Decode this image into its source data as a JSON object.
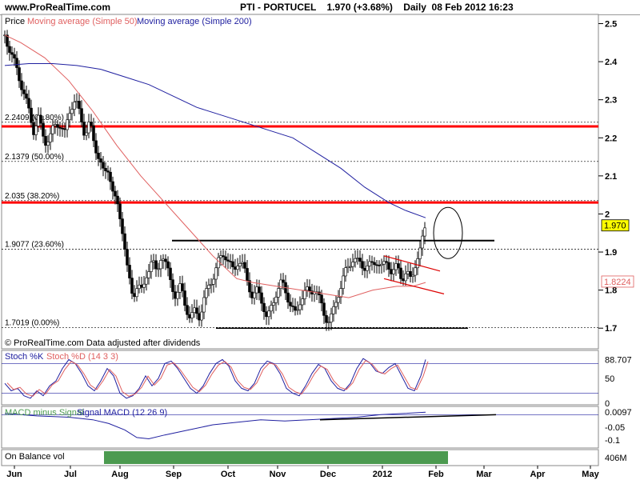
{
  "header": {
    "site": "www.ProRealTime.com",
    "title": "PTI - PORTUCEL",
    "price": "1.970 (+3.68%)",
    "info": "Daily  08 Feb 2012 16:23"
  },
  "legend": {
    "price": "Price",
    "ma50": "Moving average (Simple 50)",
    "ma200": "Moving average (Simple 200)"
  },
  "footnote": "© ProRealTime.com  Data adjusted after dividends",
  "colors": {
    "ma50": "#e06060",
    "ma200": "#2020a0",
    "support": "#ff0000",
    "up_candle": "#ffffff",
    "down_candle": "#000000",
    "stoch_k": "#2020a0",
    "stoch_d": "#e06060",
    "macd": "#2020a0",
    "obv": "#4c9a50",
    "last_price_box": "#ffff00"
  },
  "chart_data": [
    {
      "type": "candlestick",
      "id": "price",
      "x_labels": [
        "Jun",
        "Jul",
        "Aug",
        "Sep",
        "Oct",
        "Nov",
        "Dec",
        "2012",
        "Jan",
        "Feb",
        "Mar",
        "Apr",
        "May"
      ],
      "ylim": [
        1.65,
        2.52
      ],
      "yticks": [
        1.7,
        1.8,
        1.9,
        2.0,
        2.1,
        2.2,
        2.3,
        2.4,
        2.5
      ],
      "last_price": "1.970",
      "ma50_last": "1.8224",
      "fib_levels": [
        {
          "label": "2.2409 (61.80%)",
          "value": 2.2409
        },
        {
          "label": "2.1379 (50.00%)",
          "value": 2.1379
        },
        {
          "label": "2.035 (38.20%)",
          "value": 2.035
        },
        {
          "label": "1.9077 (23.60%)",
          "value": 1.9077
        },
        {
          "label": "1.7019 (0.00%)",
          "value": 1.7019
        }
      ],
      "resistance_lines": [
        2.23,
        2.03
      ],
      "close_path": [
        [
          0,
          2.47
        ],
        [
          8,
          2.42
        ],
        [
          15,
          2.38
        ],
        [
          22,
          2.33
        ],
        [
          30,
          2.27
        ],
        [
          36,
          2.22
        ],
        [
          42,
          2.25
        ],
        [
          50,
          2.19
        ],
        [
          56,
          2.2
        ],
        [
          62,
          2.23
        ],
        [
          68,
          2.24
        ],
        [
          75,
          2.21
        ],
        [
          82,
          2.28
        ],
        [
          88,
          2.3
        ],
        [
          94,
          2.26
        ],
        [
          100,
          2.21
        ],
        [
          106,
          2.24
        ],
        [
          112,
          2.18
        ],
        [
          118,
          2.15
        ],
        [
          124,
          2.1
        ],
        [
          130,
          2.12
        ],
        [
          136,
          2.05
        ],
        [
          142,
          2.01
        ],
        [
          148,
          1.95
        ],
        [
          154,
          1.84
        ],
        [
          160,
          1.78
        ],
        [
          166,
          1.82
        ],
        [
          172,
          1.79
        ],
        [
          178,
          1.85
        ],
        [
          184,
          1.88
        ],
        [
          190,
          1.84
        ],
        [
          196,
          1.9
        ],
        [
          202,
          1.86
        ],
        [
          208,
          1.82
        ],
        [
          214,
          1.78
        ],
        [
          220,
          1.81
        ],
        [
          226,
          1.76
        ],
        [
          232,
          1.72
        ],
        [
          238,
          1.75
        ],
        [
          244,
          1.73
        ],
        [
          250,
          1.78
        ],
        [
          256,
          1.82
        ],
        [
          262,
          1.84
        ],
        [
          268,
          1.88
        ],
        [
          274,
          1.9
        ],
        [
          280,
          1.87
        ],
        [
          286,
          1.85
        ],
        [
          292,
          1.88
        ],
        [
          298,
          1.86
        ],
        [
          304,
          1.82
        ],
        [
          310,
          1.78
        ],
        [
          316,
          1.8
        ],
        [
          322,
          1.77
        ],
        [
          328,
          1.72
        ],
        [
          334,
          1.76
        ],
        [
          340,
          1.8
        ],
        [
          346,
          1.82
        ],
        [
          352,
          1.79
        ],
        [
          358,
          1.76
        ],
        [
          364,
          1.73
        ],
        [
          370,
          1.78
        ],
        [
          376,
          1.8
        ],
        [
          382,
          1.79
        ],
        [
          388,
          1.81
        ],
        [
          394,
          1.77
        ],
        [
          400,
          1.73
        ],
        [
          406,
          1.72
        ],
        [
          412,
          1.75
        ],
        [
          418,
          1.8
        ],
        [
          424,
          1.84
        ],
        [
          430,
          1.86
        ],
        [
          436,
          1.89
        ],
        [
          442,
          1.87
        ],
        [
          448,
          1.86
        ],
        [
          454,
          1.87
        ],
        [
          460,
          1.86
        ],
        [
          466,
          1.88
        ],
        [
          472,
          1.86
        ],
        [
          478,
          1.87
        ],
        [
          484,
          1.85
        ],
        [
          490,
          1.86
        ],
        [
          496,
          1.83
        ],
        [
          502,
          1.85
        ],
        [
          508,
          1.82
        ],
        [
          514,
          1.88
        ],
        [
          520,
          1.91
        ],
        [
          526,
          1.97
        ]
      ],
      "ma50_path": [
        [
          0,
          2.47
        ],
        [
          20,
          2.45
        ],
        [
          50,
          2.41
        ],
        [
          80,
          2.35
        ],
        [
          110,
          2.27
        ],
        [
          140,
          2.18
        ],
        [
          170,
          2.1
        ],
        [
          200,
          2.03
        ],
        [
          230,
          1.96
        ],
        [
          260,
          1.89
        ],
        [
          290,
          1.83
        ],
        [
          310,
          1.82
        ],
        [
          340,
          1.81
        ],
        [
          370,
          1.8
        ],
        [
          400,
          1.79
        ],
        [
          430,
          1.78
        ],
        [
          460,
          1.8
        ],
        [
          490,
          1.81
        ],
        [
          510,
          1.81
        ],
        [
          526,
          1.82
        ]
      ],
      "ma200_path": [
        [
          0,
          2.39
        ],
        [
          30,
          2.395
        ],
        [
          60,
          2.395
        ],
        [
          90,
          2.39
        ],
        [
          120,
          2.38
        ],
        [
          150,
          2.36
        ],
        [
          180,
          2.34
        ],
        [
          210,
          2.31
        ],
        [
          240,
          2.28
        ],
        [
          270,
          2.26
        ],
        [
          300,
          2.24
        ],
        [
          330,
          2.22
        ],
        [
          360,
          2.2
        ],
        [
          390,
          2.16
        ],
        [
          420,
          2.12
        ],
        [
          450,
          2.07
        ],
        [
          480,
          2.03
        ],
        [
          500,
          2.01
        ],
        [
          526,
          1.99
        ]
      ]
    },
    {
      "type": "line",
      "id": "stoch",
      "title": "Stoch %K",
      "title2": "Stoch %D (14 3 3)",
      "ylim": [
        0,
        100
      ],
      "yticks": [
        "0",
        "50"
      ],
      "last_value": "88.707",
      "k_path": [
        [
          0,
          40
        ],
        [
          8,
          25
        ],
        [
          16,
          30
        ],
        [
          24,
          15
        ],
        [
          32,
          10
        ],
        [
          40,
          25
        ],
        [
          48,
          15
        ],
        [
          56,
          35
        ],
        [
          64,
          45
        ],
        [
          72,
          70
        ],
        [
          80,
          88
        ],
        [
          88,
          80
        ],
        [
          96,
          60
        ],
        [
          104,
          35
        ],
        [
          112,
          25
        ],
        [
          120,
          45
        ],
        [
          128,
          70
        ],
        [
          136,
          55
        ],
        [
          144,
          20
        ],
        [
          152,
          10
        ],
        [
          160,
          15
        ],
        [
          168,
          30
        ],
        [
          176,
          55
        ],
        [
          184,
          35
        ],
        [
          192,
          50
        ],
        [
          200,
          80
        ],
        [
          208,
          85
        ],
        [
          216,
          70
        ],
        [
          224,
          50
        ],
        [
          232,
          30
        ],
        [
          240,
          20
        ],
        [
          248,
          35
        ],
        [
          256,
          60
        ],
        [
          264,
          80
        ],
        [
          272,
          88
        ],
        [
          280,
          75
        ],
        [
          288,
          45
        ],
        [
          296,
          30
        ],
        [
          304,
          25
        ],
        [
          312,
          40
        ],
        [
          320,
          70
        ],
        [
          328,
          85
        ],
        [
          336,
          80
        ],
        [
          344,
          60
        ],
        [
          352,
          30
        ],
        [
          360,
          20
        ],
        [
          368,
          15
        ],
        [
          376,
          35
        ],
        [
          384,
          60
        ],
        [
          392,
          78
        ],
        [
          400,
          70
        ],
        [
          408,
          45
        ],
        [
          416,
          30
        ],
        [
          424,
          25
        ],
        [
          432,
          40
        ],
        [
          440,
          70
        ],
        [
          448,
          90
        ],
        [
          456,
          82
        ],
        [
          464,
          65
        ],
        [
          472,
          60
        ],
        [
          480,
          72
        ],
        [
          488,
          80
        ],
        [
          496,
          55
        ],
        [
          504,
          30
        ],
        [
          512,
          25
        ],
        [
          520,
          55
        ],
        [
          526,
          88
        ]
      ]
    },
    {
      "type": "line",
      "id": "macd",
      "title": "MACD minus Signal",
      "title2": "Signal MACD (12 26 9)",
      "ylim": [
        -0.125,
        0.02
      ],
      "yticks": [
        "-0.05",
        "-0.1"
      ],
      "last_value": "0.0097",
      "line_path": [
        [
          0,
          0.005
        ],
        [
          40,
          -0.005
        ],
        [
          80,
          -0.01
        ],
        [
          110,
          -0.02
        ],
        [
          130,
          -0.035
        ],
        [
          150,
          -0.06
        ],
        [
          165,
          -0.09
        ],
        [
          180,
          -0.095
        ],
        [
          200,
          -0.08
        ],
        [
          230,
          -0.06
        ],
        [
          260,
          -0.04
        ],
        [
          290,
          -0.03
        ],
        [
          320,
          -0.02
        ],
        [
          350,
          -0.025
        ],
        [
          380,
          -0.02
        ],
        [
          410,
          -0.015
        ],
        [
          440,
          -0.01
        ],
        [
          470,
          0.0
        ],
        [
          500,
          0.005
        ],
        [
          526,
          0.01
        ]
      ]
    },
    {
      "type": "area",
      "id": "obv",
      "title": "On Balance vol",
      "last_value": "406M"
    }
  ]
}
